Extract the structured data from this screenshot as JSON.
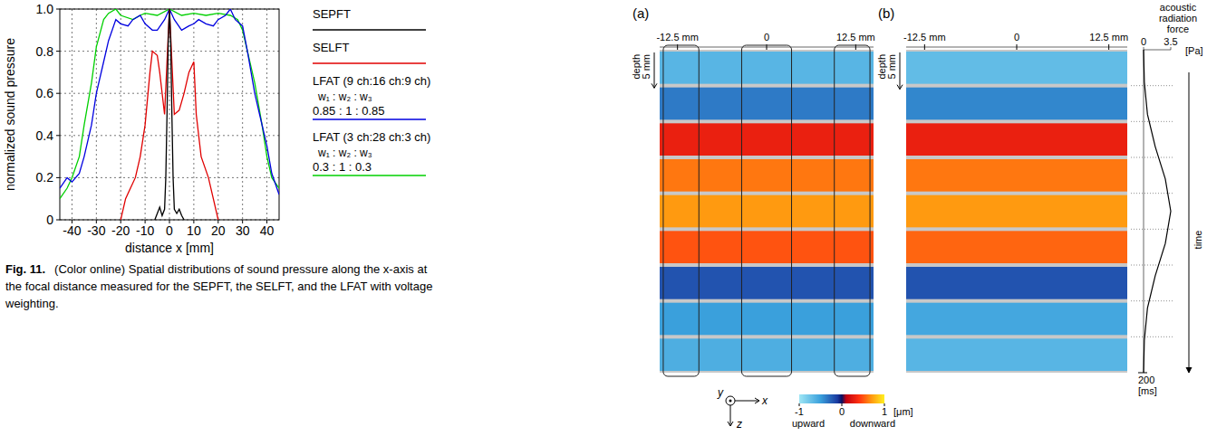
{
  "chart_data": [
    {
      "type": "line",
      "caption_label": "Fig. 11.",
      "caption": "(Color online) Spatial distributions of sound pressure along the x-axis at the focal distance measured for the SEPFT, the SELFT, and the LFAT with voltage weighting.",
      "xlabel": "distance x [mm]",
      "ylabel": "normalized sound pressure",
      "xlim": [
        -45,
        45
      ],
      "xticks": [
        -40,
        -30,
        -20,
        -10,
        0,
        10,
        20,
        30,
        40
      ],
      "ylim": [
        0,
        1
      ],
      "yticks": [
        0,
        0.2,
        0.4,
        0.6,
        0.8,
        {
          "value": 1,
          "label": "1.0"
        }
      ],
      "grid": true,
      "legend": "right",
      "series": [
        {
          "name": "SEPFT",
          "color": "#000000",
          "x": [
            -6,
            -5,
            -4,
            -3,
            -2,
            -1.5,
            -1,
            -0.5,
            0,
            0.5,
            1,
            1.5,
            2,
            3,
            4,
            5,
            6
          ],
          "values": [
            0,
            0.03,
            0.06,
            0.02,
            0.05,
            0.2,
            0.5,
            0.85,
            1,
            0.85,
            0.5,
            0.2,
            0.05,
            0.03,
            0.05,
            0.02,
            0
          ]
        },
        {
          "name": "SELFT",
          "color": "#e00000",
          "x": [
            -20,
            -18,
            -16,
            -14,
            -12,
            -10,
            -8,
            -7,
            -5,
            -4,
            -2,
            0,
            2,
            4,
            6,
            8,
            10,
            11,
            13,
            16,
            18,
            20
          ],
          "values": [
            0,
            0.1,
            0.15,
            0.2,
            0.3,
            0.45,
            0.7,
            0.8,
            0.78,
            0.7,
            0.5,
            1,
            0.5,
            0.52,
            0.6,
            0.7,
            0.75,
            0.5,
            0.3,
            0.2,
            0.1,
            0
          ]
        },
        {
          "name": "LFAT (9 ch:16 ch:9 ch)",
          "color": "#0000e0",
          "weight_header": "w₁ : w₂ : w₃",
          "weights": "0.85 : 1 : 0.85",
          "x": [
            -45,
            -42,
            -40,
            -37,
            -35,
            -32,
            -30,
            -27,
            -25,
            -22,
            -20,
            -17,
            -15,
            -12,
            -10,
            -7,
            -5,
            -2,
            0,
            2,
            5,
            8,
            10,
            12,
            15,
            18,
            20,
            23,
            25,
            27,
            30,
            32,
            35,
            37,
            40,
            42,
            45
          ],
          "values": [
            0.15,
            0.2,
            0.18,
            0.22,
            0.3,
            0.45,
            0.6,
            0.75,
            0.85,
            0.95,
            0.93,
            0.92,
            0.95,
            0.97,
            0.93,
            0.9,
            0.9,
            0.95,
            1,
            0.95,
            0.9,
            0.92,
            0.93,
            0.95,
            0.93,
            0.92,
            0.95,
            0.97,
            1,
            0.95,
            0.92,
            0.8,
            0.6,
            0.5,
            0.35,
            0.22,
            0.12
          ]
        },
        {
          "name": "LFAT (3 ch:28 ch:3 ch)",
          "color": "#00d000",
          "weight_header": "w₁ : w₂ : w₃",
          "weights": "0.3 : 1 : 0.3",
          "x": [
            -45,
            -42,
            -40,
            -37,
            -35,
            -32,
            -30,
            -27,
            -25,
            -22,
            -20,
            -15,
            -12,
            -10,
            -5,
            0,
            5,
            10,
            15,
            20,
            25,
            28,
            30,
            32,
            35,
            38,
            40,
            42,
            45
          ],
          "values": [
            0.1,
            0.15,
            0.2,
            0.3,
            0.45,
            0.65,
            0.82,
            0.95,
            0.98,
            1,
            0.97,
            0.95,
            0.97,
            0.98,
            0.97,
            1,
            0.97,
            0.98,
            0.97,
            0.98,
            0.97,
            0.95,
            0.9,
            0.8,
            0.65,
            0.45,
            0.3,
            0.2,
            0.15
          ]
        }
      ]
    },
    {
      "type": "heatmap",
      "panel": "(a)",
      "xlim": [
        -15,
        15
      ],
      "xticks": [
        {
          "value": -12.5,
          "label": "-12.5 mm"
        },
        0,
        {
          "value": 12.5,
          "label": "12.5 mm"
        }
      ],
      "depth_label": "depth",
      "depth_scale": {
        "value": 5,
        "label": "5 mm"
      },
      "cells": [
        -0.65,
        -0.35,
        0.3,
        0.6,
        0.7,
        0.5,
        -0.2,
        -0.5,
        -0.6
      ],
      "boxes": [
        [
          -14.5,
          -9.5
        ],
        [
          -3.5,
          3.5
        ],
        [
          9.5,
          14.5
        ]
      ],
      "axis_labels": [
        "y",
        "x",
        "z"
      ],
      "colorbar": {
        "range": [
          -1,
          1
        ],
        "ticks": [
          -1,
          0,
          1
        ],
        "unit": "[μm]",
        "low_label": "upward",
        "high_label": "downward"
      }
    },
    {
      "type": "heatmap",
      "panel": "(b)",
      "xlim": [
        -15,
        15
      ],
      "xticks": [
        {
          "value": -12.5,
          "label": "-12.5 mm"
        },
        0,
        {
          "value": 12.5,
          "label": "12.5 mm"
        }
      ],
      "depth_label": "depth",
      "depth_scale": {
        "value": 5,
        "label": "5 mm"
      },
      "cells": [
        -0.7,
        -0.4,
        0.3,
        0.6,
        0.7,
        0.55,
        -0.2,
        -0.55,
        -0.65
      ]
    },
    {
      "type": "line",
      "title": "acoustic radiation force",
      "x_unit": "[Pa]",
      "ylabel": "time",
      "y_unit": "[ms]",
      "xlim": [
        0,
        3.5
      ],
      "xticks": [
        0,
        3.5
      ],
      "ylim": [
        0,
        200
      ],
      "yticks": [
        200
      ],
      "time": [
        0,
        20,
        40,
        60,
        80,
        100,
        120,
        140,
        160,
        180,
        200
      ],
      "values": [
        0,
        0.1,
        0.5,
        1.5,
        2.8,
        3.5,
        2.8,
        1.5,
        0.5,
        0.1,
        0
      ]
    }
  ]
}
